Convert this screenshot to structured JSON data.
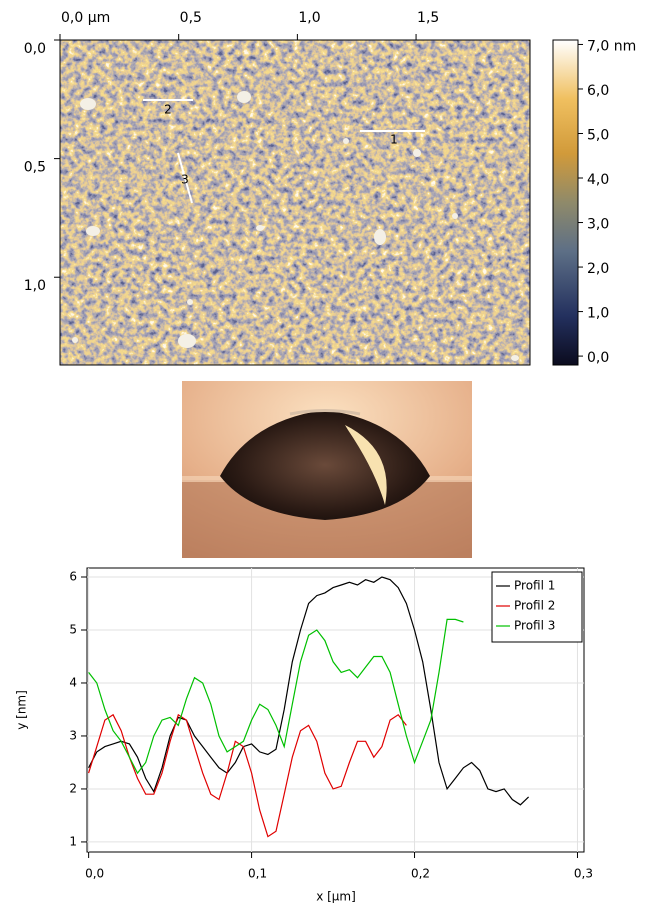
{
  "chart_data": [
    {
      "type": "image",
      "xlim": [
        0,
        1.98
      ],
      "ylim": [
        0,
        1.37
      ],
      "xticks": [
        {
          "value": 0,
          "label": "0,0 µm"
        },
        {
          "value": 0.5,
          "label": "0,5"
        },
        {
          "value": 1.0,
          "label": "1,0"
        },
        {
          "value": 1.5,
          "label": "1,5"
        }
      ],
      "yticks": [
        {
          "value": 0,
          "label": "0,0"
        },
        {
          "value": 0.5,
          "label": "0,5"
        },
        {
          "value": 1.0,
          "label": "1,0"
        }
      ],
      "clim": [
        -0.2,
        7.1
      ],
      "cticks": [
        {
          "value": 0,
          "label": "0,0"
        },
        {
          "value": 1,
          "label": "1,0"
        },
        {
          "value": 2,
          "label": "2,0"
        },
        {
          "value": 3,
          "label": "3,0"
        },
        {
          "value": 4,
          "label": "4,0"
        },
        {
          "value": 5,
          "label": "5,0"
        },
        {
          "value": 6,
          "label": "6,0"
        },
        {
          "value": 7,
          "label": "7,0 nm"
        }
      ],
      "annotations": [
        "1",
        "2",
        "3"
      ]
    },
    {
      "type": "line",
      "xlabel": "x [µm]",
      "ylabel": "y [nm]",
      "xlim": [
        -0.001,
        0.304
      ],
      "ylim": [
        0.81,
        6.17
      ],
      "xticks": [
        {
          "value": 0,
          "label": "0,0"
        },
        {
          "value": 0.1,
          "label": "0,1"
        },
        {
          "value": 0.2,
          "label": "0,2"
        },
        {
          "value": 0.3,
          "label": "0,3"
        }
      ],
      "yticks": [
        1,
        2,
        3,
        4,
        5,
        6
      ],
      "grid": true,
      "legend": "top-right",
      "x": [
        0,
        0.005,
        0.01,
        0.015,
        0.02,
        0.025,
        0.03,
        0.035,
        0.04,
        0.045,
        0.05,
        0.055,
        0.06,
        0.065,
        0.07,
        0.075,
        0.08,
        0.085,
        0.09,
        0.095,
        0.1,
        0.105,
        0.11,
        0.115,
        0.12,
        0.125,
        0.13,
        0.135,
        0.14,
        0.145,
        0.15,
        0.155,
        0.16,
        0.165,
        0.17,
        0.175,
        0.18,
        0.185,
        0.19,
        0.195,
        0.2,
        0.205,
        0.21,
        0.215,
        0.22,
        0.225,
        0.23,
        0.235,
        0.24,
        0.245,
        0.25,
        0.255,
        0.26,
        0.265,
        0.27
      ],
      "series": [
        {
          "name": "Profil 1",
          "color": "#000000",
          "values": [
            2.4,
            2.7,
            2.8,
            2.85,
            2.9,
            2.85,
            2.6,
            2.2,
            1.95,
            2.4,
            3.0,
            3.35,
            3.3,
            3.0,
            2.8,
            2.6,
            2.4,
            2.3,
            2.5,
            2.8,
            2.85,
            2.7,
            2.65,
            2.75,
            3.5,
            4.4,
            5.0,
            5.5,
            5.65,
            5.7,
            5.8,
            5.85,
            5.9,
            5.85,
            5.95,
            5.9,
            6.0,
            5.95,
            5.8,
            5.5,
            5.0,
            4.4,
            3.5,
            2.5,
            2.0,
            2.2,
            2.4,
            2.5,
            2.35,
            2.0,
            1.95,
            2.0,
            1.8,
            1.7,
            1.85
          ]
        },
        {
          "name": "Profil 2",
          "color": "#e00000",
          "values": [
            2.3,
            2.8,
            3.3,
            3.4,
            3.1,
            2.6,
            2.2,
            1.9,
            1.9,
            2.3,
            2.9,
            3.4,
            3.3,
            2.8,
            2.3,
            1.9,
            1.8,
            2.3,
            2.9,
            2.8,
            2.3,
            1.6,
            1.1,
            1.2,
            1.9,
            2.6,
            3.1,
            3.2,
            2.9,
            2.3,
            2.0,
            2.05,
            2.5,
            2.9,
            2.9,
            2.6,
            2.8,
            3.3,
            3.4,
            3.2,
            null,
            null,
            null,
            null,
            null,
            null,
            null,
            null,
            null,
            null,
            null,
            null,
            null,
            null,
            null
          ]
        },
        {
          "name": "Profil 3",
          "color": "#00c000",
          "values": [
            4.2,
            4.0,
            3.5,
            3.1,
            2.9,
            2.6,
            2.3,
            2.5,
            3.0,
            3.3,
            3.35,
            3.2,
            3.7,
            4.1,
            4.0,
            3.6,
            3.0,
            2.7,
            2.8,
            2.9,
            3.3,
            3.6,
            3.5,
            3.2,
            2.8,
            3.6,
            4.4,
            4.9,
            5.0,
            4.8,
            4.4,
            4.2,
            4.25,
            4.1,
            4.3,
            4.5,
            4.5,
            4.2,
            3.6,
            3.0,
            2.5,
            2.9,
            3.3,
            4.2,
            5.2,
            5.2,
            5.15,
            null,
            null,
            null,
            null,
            null,
            null,
            null,
            null
          ]
        }
      ]
    }
  ]
}
